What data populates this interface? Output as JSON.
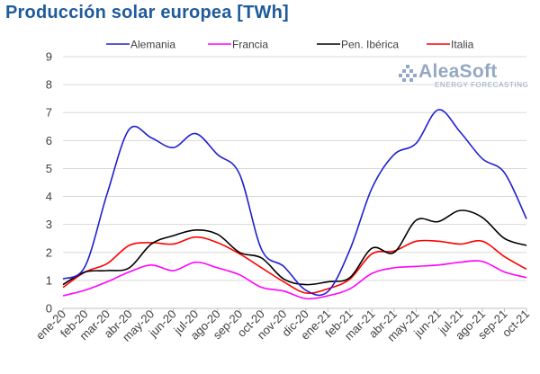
{
  "title": "Producción solar europea [TWh]",
  "logo": {
    "name": "AleaSoft",
    "subtitle": "ENERGY FORECASTING"
  },
  "chart_data": {
    "type": "line",
    "title": "Producción solar europea [TWh]",
    "x": [
      "ene-20",
      "feb-20",
      "mar-20",
      "abr-20",
      "may-20",
      "jun-20",
      "jul-20",
      "ago-20",
      "sep-20",
      "oct-20",
      "nov-20",
      "dic-20",
      "ene-21",
      "feb-21",
      "mar-21",
      "abr-21",
      "may-21",
      "jun-21",
      "jul-21",
      "ago-21",
      "sep-21",
      "oct-21"
    ],
    "ylim": [
      0,
      9
    ],
    "yticks": [
      0,
      1,
      2,
      3,
      4,
      5,
      6,
      7,
      8,
      9
    ],
    "grid": true,
    "legend_position": "top",
    "series": [
      {
        "name": "Alemania",
        "color": "#2020d0",
        "values": [
          1.05,
          1.5,
          4.1,
          6.4,
          6.1,
          5.75,
          6.25,
          5.5,
          4.8,
          2.1,
          1.5,
          0.65,
          0.6,
          2.1,
          4.3,
          5.5,
          5.9,
          7.1,
          6.3,
          5.35,
          4.85,
          3.2
        ]
      },
      {
        "name": "Francia",
        "color": "#ff00ff",
        "values": [
          0.45,
          0.65,
          0.95,
          1.3,
          1.55,
          1.35,
          1.65,
          1.45,
          1.2,
          0.75,
          0.62,
          0.35,
          0.45,
          0.7,
          1.25,
          1.45,
          1.5,
          1.55,
          1.65,
          1.68,
          1.3,
          1.1
        ]
      },
      {
        "name": "Pen. Ibérica",
        "color": "#000000",
        "values": [
          0.85,
          1.3,
          1.35,
          1.45,
          2.3,
          2.6,
          2.8,
          2.65,
          2.0,
          1.8,
          1.05,
          0.85,
          0.95,
          1.1,
          2.15,
          2.0,
          3.15,
          3.1,
          3.5,
          3.25,
          2.5,
          2.25
        ]
      },
      {
        "name": "Italia",
        "color": "#ff0000",
        "values": [
          0.75,
          1.3,
          1.6,
          2.25,
          2.35,
          2.3,
          2.55,
          2.35,
          1.95,
          1.45,
          0.95,
          0.55,
          0.7,
          1.05,
          1.95,
          2.05,
          2.4,
          2.4,
          2.3,
          2.4,
          1.85,
          1.4
        ]
      }
    ]
  }
}
